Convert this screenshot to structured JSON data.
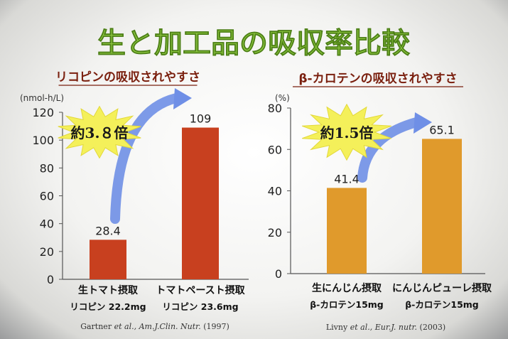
{
  "title": "生と加工品の吸収率比較",
  "colors": {
    "title_green": "#8cc63f",
    "subtitle": "#7a1f0e",
    "bar_red": "#c8401f",
    "bar_orange": "#e09a2c",
    "arrow_blue": "#6f8fe6",
    "burst_yellow": "#f4f05a"
  },
  "chart_data": [
    {
      "type": "bar",
      "title": "リコピンの吸収されやすさ",
      "ylabel": "(nmol-h/L)",
      "ylim": [
        0,
        120
      ],
      "yticks": [
        "0",
        "20",
        "40",
        "60",
        "80",
        "100",
        "120"
      ],
      "categories": [
        {
          "line1": "生トマト摂取",
          "line2": "リコピン 22.2mg"
        },
        {
          "line1": "トマトペースト摂取",
          "line2": "リコピン 23.6mg"
        }
      ],
      "values": [
        28.4,
        109
      ],
      "value_labels": [
        "28.4",
        "109"
      ],
      "bar_color": "#c8401f",
      "annotation": "約3.８倍",
      "source_parts": [
        "Gartner ",
        "et al.,",
        " Am.J.Clin. Nutr.",
        " (1997)"
      ]
    },
    {
      "type": "bar",
      "title": "β-カロテンの吸収されやすさ",
      "ylabel": "(%)",
      "ylim": [
        0,
        80
      ],
      "yticks": [
        "0",
        "20",
        "40",
        "60",
        "80"
      ],
      "categories": [
        {
          "line1": "生にんじん摂取",
          "line2": "β-カロテン15mg"
        },
        {
          "line1": "にんじんピューレ摂取",
          "line2": "β-カロテン15mg"
        }
      ],
      "values": [
        41.4,
        65.1
      ],
      "value_labels": [
        "41.4",
        "65.1"
      ],
      "bar_color": "#e09a2c",
      "annotation": "約1.5倍",
      "source_parts": [
        "Livny ",
        "et al.,",
        " Eur.J. nutr.",
        " (2003)"
      ]
    }
  ]
}
